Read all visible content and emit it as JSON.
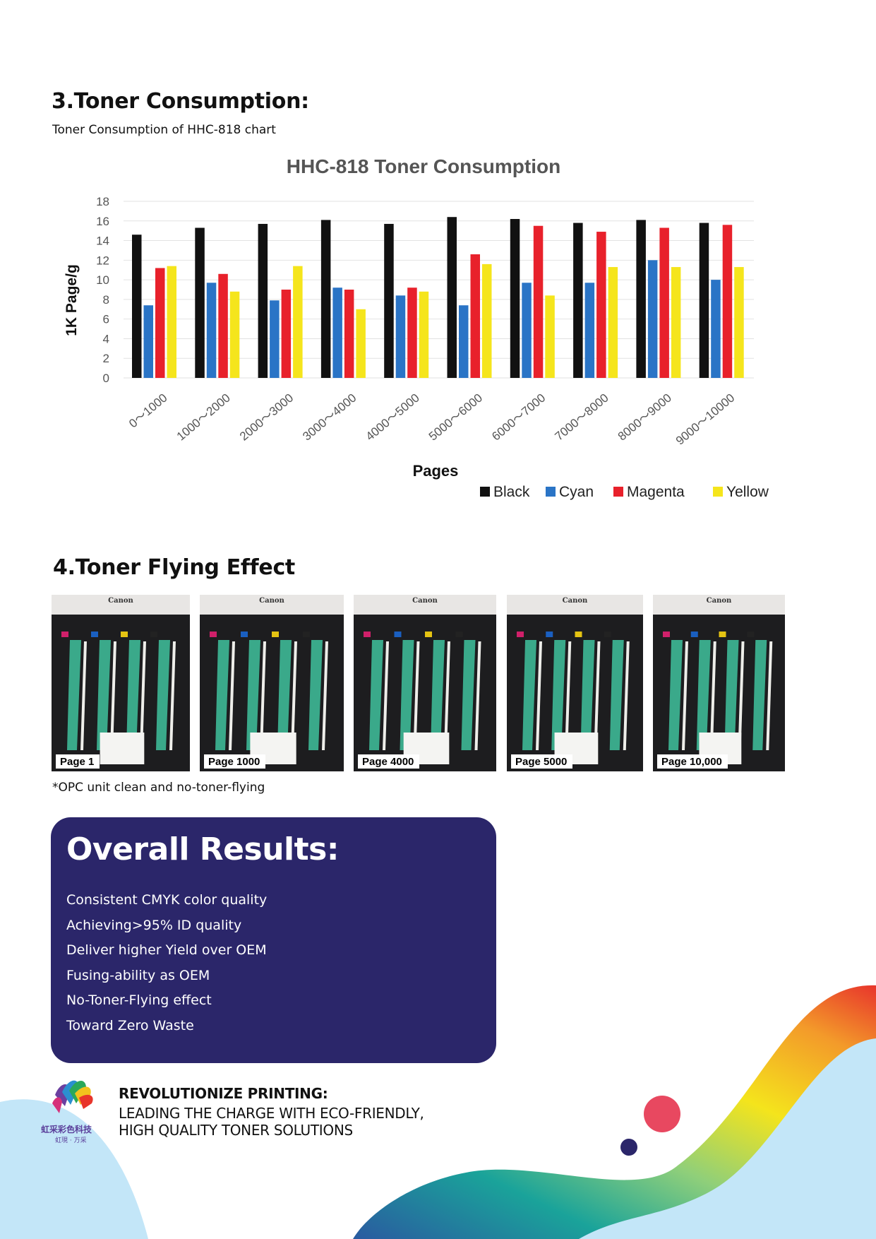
{
  "section3": {
    "title": "3.Toner Consumption:",
    "subtitle": "Toner Consumption of HHC-818 chart"
  },
  "chart_data": {
    "type": "bar",
    "title": "HHC-818 Toner Consumption",
    "xlabel": "Pages",
    "ylabel": "1K Page/g",
    "ylim": [
      0,
      18
    ],
    "yticks": [
      "0",
      "2",
      "4",
      "6",
      "8",
      "10",
      "12",
      "14",
      "16",
      "18"
    ],
    "categories": [
      "0～1000",
      "1000～2000",
      "2000～3000",
      "3000～4000",
      "4000～5000",
      "5000～6000",
      "6000～7000",
      "7000～8000",
      "8000～9000",
      "9000～10000"
    ],
    "series": [
      {
        "name": "Black",
        "color": "#111111",
        "values": [
          14.6,
          15.3,
          15.7,
          16.1,
          15.7,
          16.4,
          16.2,
          15.8,
          16.1,
          15.8
        ]
      },
      {
        "name": "Cyan",
        "color": "#2a74c6",
        "values": [
          7.4,
          9.7,
          7.9,
          9.2,
          8.4,
          7.4,
          9.7,
          9.7,
          12.0,
          10.0
        ]
      },
      {
        "name": "Magenta",
        "color": "#e8212b",
        "values": [
          11.2,
          10.6,
          9.0,
          9.0,
          9.2,
          12.6,
          15.5,
          14.9,
          15.3,
          15.6
        ]
      },
      {
        "name": "Yellow",
        "color": "#f5e51c",
        "values": [
          11.4,
          8.8,
          11.4,
          7.0,
          8.8,
          11.6,
          8.4,
          11.3,
          11.3,
          11.3
        ]
      }
    ],
    "grid": true,
    "legend": "bottom-right"
  },
  "section4": {
    "title": "4.Toner Flying Effect",
    "photos": [
      {
        "label": "Page 1",
        "brand": "Canon"
      },
      {
        "label": "Page 1000",
        "brand": "Canon"
      },
      {
        "label": "Page 4000",
        "brand": "Canon"
      },
      {
        "label": "Page 5000",
        "brand": "Canon"
      },
      {
        "label": "Page 10,000",
        "brand": "Canon"
      }
    ],
    "note": "*OPC unit clean and no-toner-flying"
  },
  "results": {
    "title": "Overall Results:",
    "items": [
      "Consistent CMYK color quality",
      "Achieving>95% ID quality",
      "Deliver higher Yield over OEM",
      "Fusing-ability as OEM",
      "No-Toner-Flying effect",
      "Toward Zero Waste"
    ]
  },
  "footer": {
    "heading": "REVOLUTIONIZE PRINTING:",
    "line1": "LEADING THE CHARGE WITH ECO-FRIENDLY,",
    "line2": "HIGH QUALITY TONER SOLUTIONS",
    "logo_text": "虹采彩色科技",
    "logo_subtext": "虹現 · 万采"
  },
  "colors": {
    "results_bg": "#2b266a",
    "deco_light_blue": "#c3e6f8",
    "dot_red": "#e84860",
    "dot_navy": "#2b266a"
  }
}
